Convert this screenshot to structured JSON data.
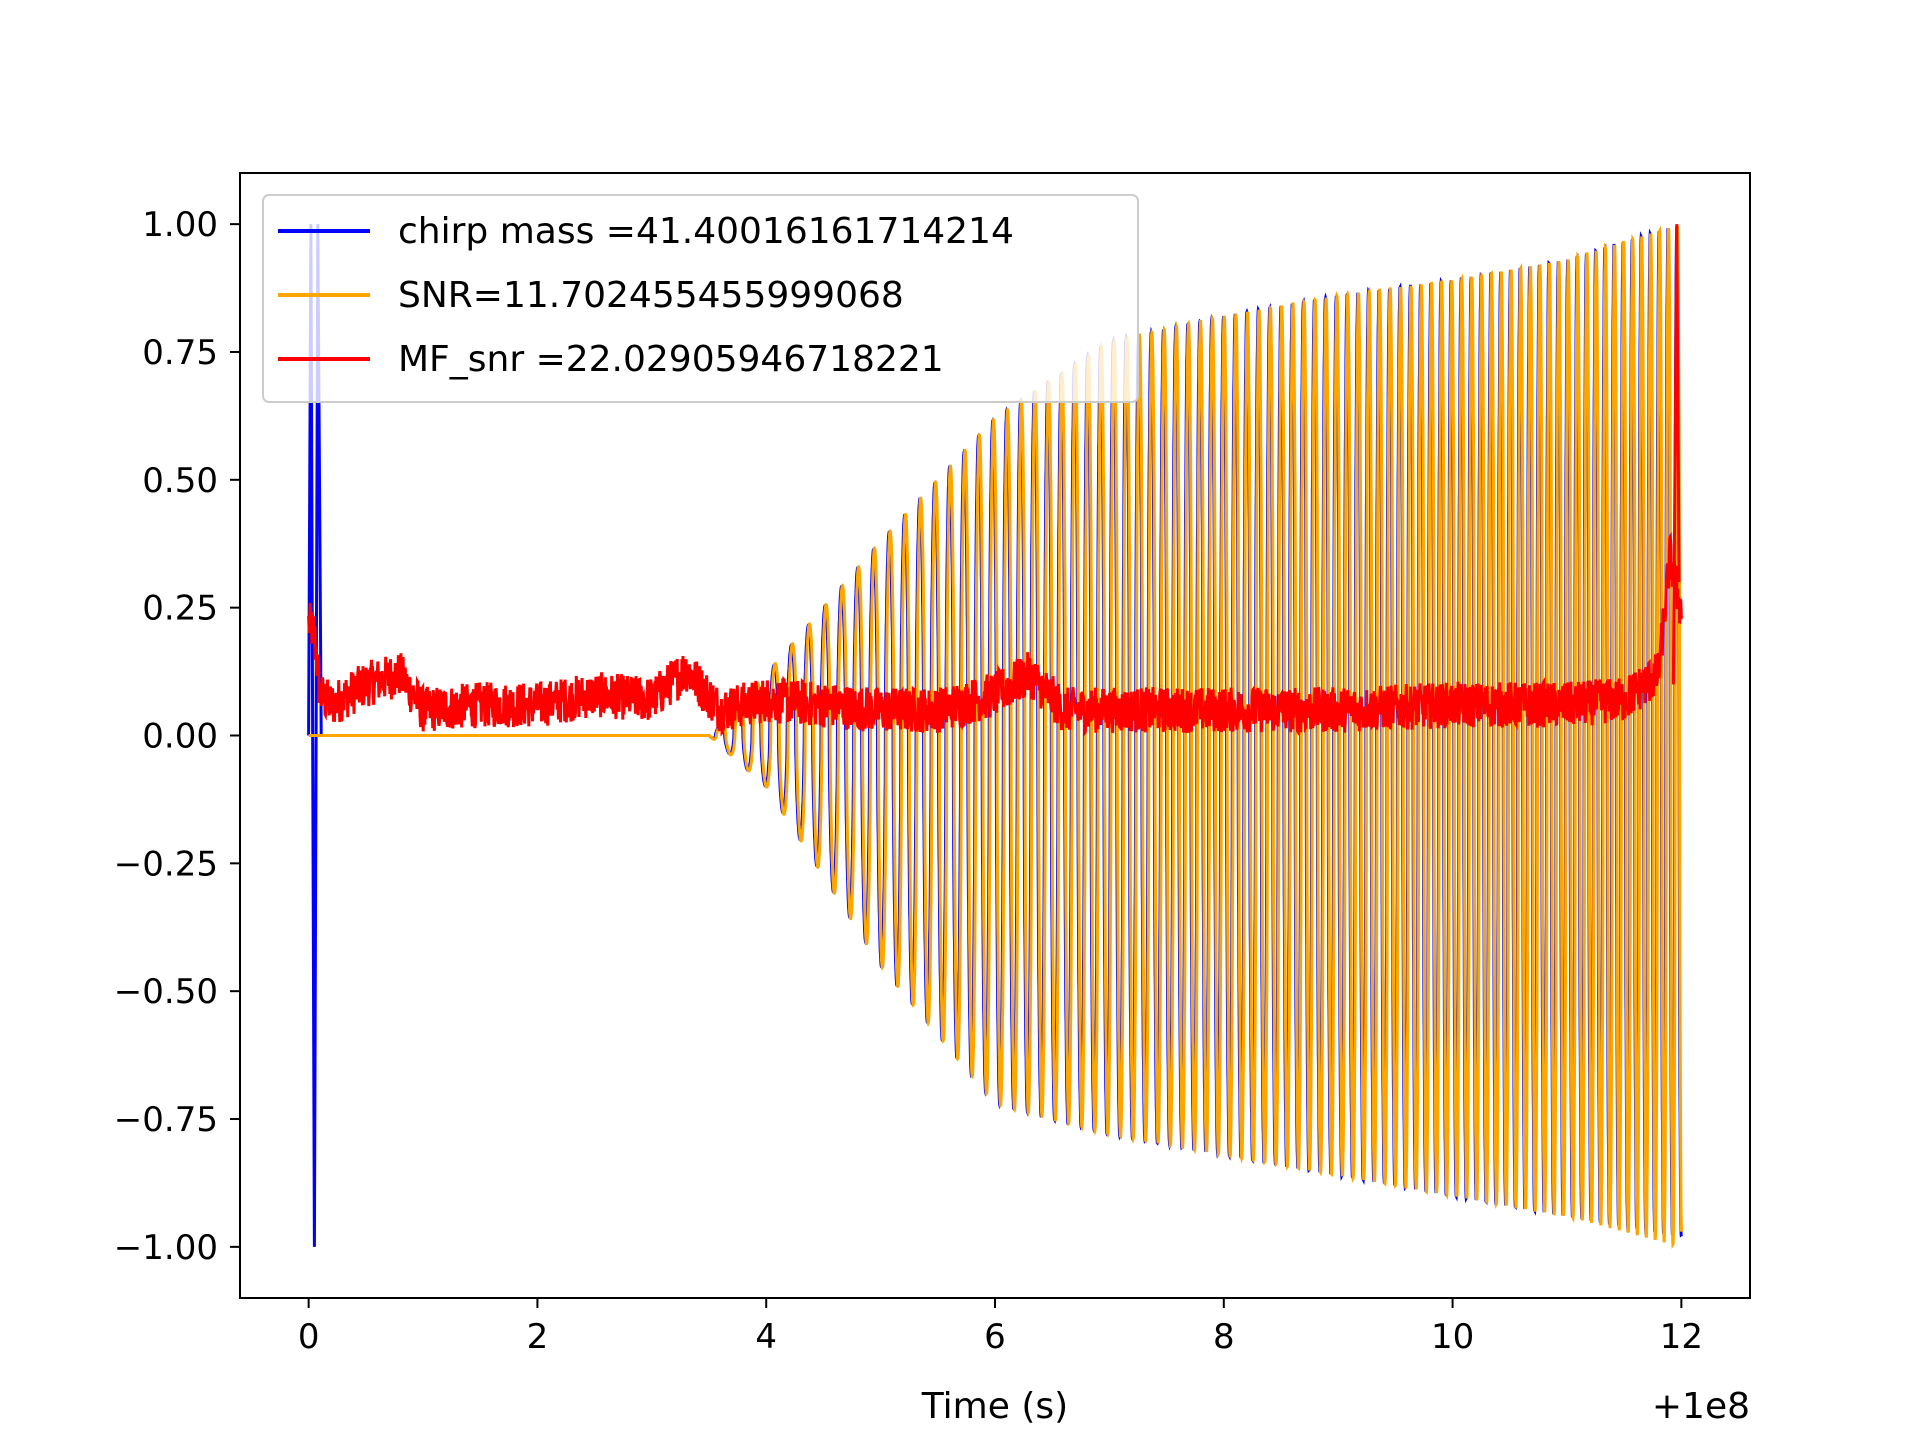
{
  "chart_data": {
    "type": "line",
    "title": "",
    "xlabel": "Time (s)",
    "ylabel": "",
    "x_offset_label": "+1e8",
    "xlim": [
      -0.6,
      12.6
    ],
    "ylim": [
      -1.1,
      1.1
    ],
    "xticks": [
      0,
      2,
      4,
      6,
      8,
      10,
      12
    ],
    "xtick_labels": [
      "0",
      "2",
      "4",
      "6",
      "8",
      "10",
      "12"
    ],
    "yticks": [
      1.0,
      0.75,
      0.5,
      0.25,
      0.0,
      -0.25,
      -0.5,
      -0.75,
      -1.0
    ],
    "ytick_labels": [
      "1.00",
      "0.75",
      "0.50",
      "0.25",
      "0.00",
      "−0.25",
      "−0.50",
      "−0.75",
      "−1.00"
    ],
    "grid": false,
    "legend_position": "top-left",
    "series": [
      {
        "name": "chirp mass =41.40016161714214",
        "color": "#0000ff",
        "description_points": {
          "x": [
            0.0,
            0.03,
            0.06,
            0.1,
            3.5,
            4.0,
            5.0,
            6.0,
            7.0,
            8.0,
            9.0,
            10.0,
            11.0,
            12.0
          ],
          "envelope_upper": [
            1.0,
            1.0,
            1.0,
            0.0,
            0.0,
            0.12,
            0.38,
            0.62,
            0.77,
            0.82,
            0.86,
            0.89,
            0.93,
            1.0
          ],
          "envelope_lower": [
            -1.0,
            -1.0,
            -1.0,
            0.0,
            0.0,
            -0.1,
            -0.45,
            -0.72,
            -0.78,
            -0.82,
            -0.86,
            -0.9,
            -0.94,
            -0.98
          ]
        }
      },
      {
        "name": "SNR=11.702455455999068",
        "color": "#ffa500",
        "description_points": {
          "x": [
            0.0,
            3.5,
            4.0,
            5.0,
            6.0,
            7.0,
            8.0,
            9.0,
            10.0,
            11.0,
            12.0
          ],
          "envelope_upper": [
            0.0,
            0.0,
            0.12,
            0.38,
            0.62,
            0.77,
            0.82,
            0.86,
            0.89,
            0.93,
            1.0
          ],
          "envelope_lower": [
            0.0,
            0.0,
            -0.1,
            -0.45,
            -0.72,
            -0.78,
            -0.82,
            -0.86,
            -0.9,
            -0.94,
            -1.0
          ]
        }
      },
      {
        "name": "MF_snr =22.02905946718221",
        "color": "#ff0000",
        "x": [
          0.0,
          0.05,
          0.1,
          0.2,
          0.5,
          0.8,
          1.0,
          1.5,
          2.0,
          2.5,
          3.0,
          3.3,
          3.6,
          4.0,
          4.5,
          5.0,
          5.5,
          6.0,
          6.3,
          6.6,
          7.0,
          8.0,
          9.0,
          10.0,
          11.0,
          11.5,
          11.8,
          11.9,
          12.0
        ],
        "y": [
          0.22,
          0.2,
          0.08,
          0.06,
          0.1,
          0.12,
          0.05,
          0.06,
          0.06,
          0.08,
          0.07,
          0.13,
          0.05,
          0.07,
          0.06,
          0.05,
          0.05,
          0.08,
          0.12,
          0.05,
          0.05,
          0.05,
          0.05,
          0.06,
          0.06,
          0.07,
          0.12,
          0.35,
          0.24
        ]
      }
    ]
  }
}
